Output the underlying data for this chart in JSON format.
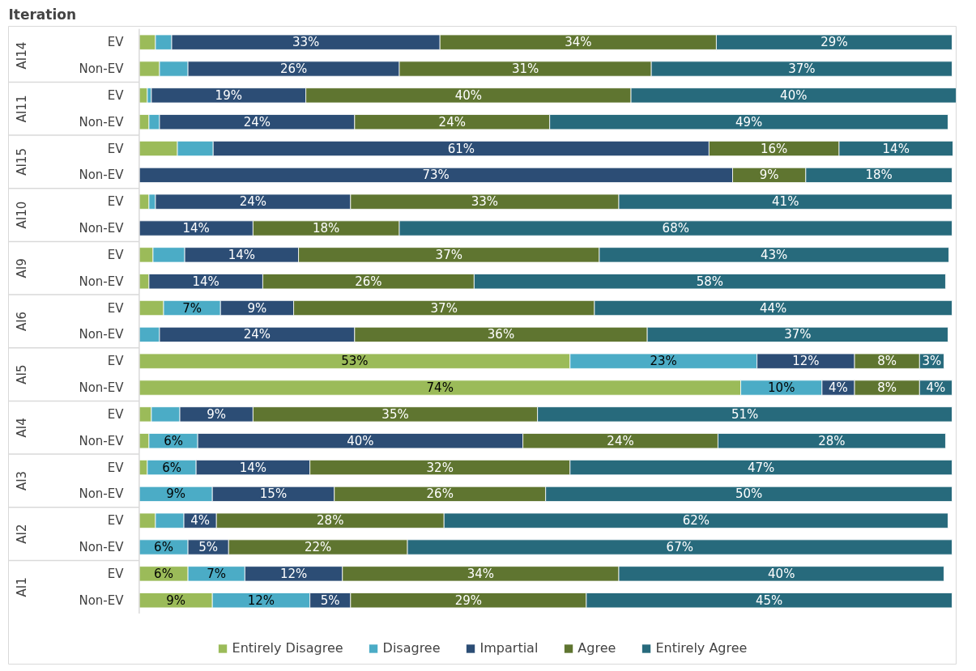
{
  "chart_data": {
    "type": "bar",
    "orientation": "horizontal",
    "stacked": true,
    "title": "Iteration",
    "legend": "bottom",
    "categories": [
      "EV",
      "Non-EV",
      "EV",
      "Non-EV",
      "EV",
      "Non-EV",
      "EV",
      "Non-EV",
      "EV",
      "Non-EV",
      "EV",
      "Non-EV",
      "EV",
      "Non-EV",
      "EV",
      "Non-EV",
      "EV",
      "Non-EV",
      "EV",
      "Non-EV",
      "EV",
      "Non-EV"
    ],
    "annotations": [
      "AI14",
      "AI11",
      "AI15",
      "AI10",
      "AI9",
      "AI6",
      "AI5",
      "AI4",
      "AI3",
      "AI2",
      "AI1"
    ],
    "series": [
      {
        "name": "Entirely Disagree",
        "color": "#9bbb59",
        "values": [
          2,
          2.5,
          1,
          1.2,
          4.7,
          null,
          1.2,
          null,
          1.7,
          1.2,
          3,
          null,
          53,
          74,
          1.5,
          1.2,
          1,
          null,
          2,
          null,
          6,
          9
        ],
        "value_labels": [
          null,
          null,
          null,
          null,
          null,
          null,
          null,
          null,
          null,
          null,
          null,
          null,
          "53%",
          "74%",
          null,
          null,
          null,
          null,
          null,
          null,
          "6%",
          "9%"
        ]
      },
      {
        "name": "Disagree",
        "color": "#4bacc6",
        "values": [
          2,
          3.5,
          0.5,
          1.3,
          4.4,
          null,
          0.8,
          null,
          3.9,
          null,
          7,
          2.5,
          23,
          10,
          3.5,
          6,
          6,
          9,
          3.5,
          6,
          7,
          12
        ],
        "value_labels": [
          null,
          null,
          null,
          null,
          null,
          null,
          null,
          null,
          null,
          null,
          "7%",
          null,
          "23%",
          "10%",
          null,
          "6%",
          "6%",
          "9%",
          null,
          "6%",
          "7%",
          "12%"
        ]
      },
      {
        "name": "Impartial",
        "color": "#2c4d75",
        "values": [
          33,
          26,
          19,
          24,
          61,
          73,
          24,
          14,
          14,
          14,
          9,
          24,
          12,
          4,
          9,
          40,
          14,
          15,
          4,
          5,
          12,
          5
        ],
        "value_labels": [
          "33%",
          "26%",
          "19%",
          "24%",
          "61%",
          "73%",
          "24%",
          "14%",
          "14%",
          "14%",
          "9%",
          "24%",
          "12%",
          "4%",
          "9%",
          "40%",
          "14%",
          "15%",
          "4%",
          "5%",
          "12%",
          "5%"
        ]
      },
      {
        "name": "Agree",
        "color": "#5f7530",
        "values": [
          34,
          31,
          40,
          24,
          16,
          9,
          33,
          18,
          37,
          26,
          37,
          36,
          8,
          8,
          35,
          24,
          32,
          26,
          28,
          22,
          34,
          29
        ],
        "value_labels": [
          "34%",
          "31%",
          "40%",
          "24%",
          "16%",
          "9%",
          "33%",
          "18%",
          "37%",
          "26%",
          "37%",
          "36%",
          "8%",
          "8%",
          "35%",
          "24%",
          "32%",
          "26%",
          "28%",
          "22%",
          "34%",
          "29%"
        ]
      },
      {
        "name": "Entirely Agree",
        "color": "#276a7c",
        "values": [
          29,
          37,
          40,
          49,
          14,
          18,
          41,
          68,
          43,
          58,
          44,
          37,
          3,
          4,
          51,
          28,
          47,
          50,
          62,
          67,
          40,
          45
        ],
        "value_labels": [
          "29%",
          "37%",
          "40%",
          "49%",
          "14%",
          "18%",
          "41%",
          "68%",
          "43%",
          "58%",
          "44%",
          "37%",
          "3%",
          "4%",
          "51%",
          "28%",
          "47%",
          "50%",
          "62%",
          "67%",
          "40%",
          "45%"
        ]
      }
    ]
  }
}
